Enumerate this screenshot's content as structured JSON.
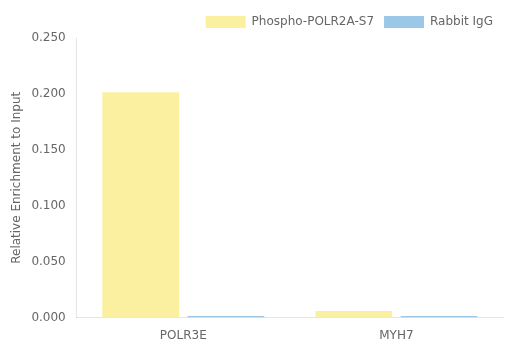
{
  "chart_data": {
    "type": "bar",
    "categories": [
      "POLR3E",
      "MYH7"
    ],
    "series": [
      {
        "name": "Phospho-POLR2A-S7",
        "color": "#FAF0A0",
        "values": [
          0.2015,
          0.006
        ]
      },
      {
        "name": "Rabbit IgG",
        "color": "#9CC8E8",
        "values": [
          0.0015,
          0.0015
        ]
      }
    ],
    "ylabel": "Relative Enrichment to Input",
    "ylim": [
      0,
      0.25
    ],
    "yticks": [
      {
        "value": 0,
        "label": "0.000"
      },
      {
        "value": 0.05,
        "label": "0.050"
      },
      {
        "value": 0.1,
        "label": "0.100"
      },
      {
        "value": 0.15,
        "label": "0.150"
      },
      {
        "value": 0.2,
        "label": "0.200"
      },
      {
        "value": 0.25,
        "label": "0.250"
      }
    ],
    "grid": false,
    "legend": "upper right"
  }
}
